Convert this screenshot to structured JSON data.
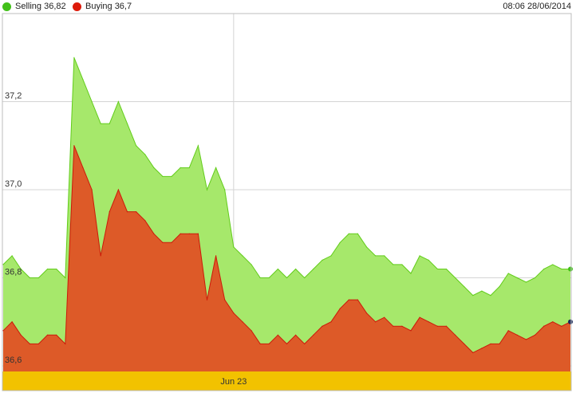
{
  "legend": {
    "selling_label": "Selling 36,82",
    "buying_label": "Buying 36,7",
    "timestamp": "08:06 28/06/2014"
  },
  "colors": {
    "selling_fill": "#a6e86b",
    "selling_line": "#62cc1a",
    "buying_fill": "#dd5a28",
    "buying_line": "#cc1a0a",
    "date_band": "#f2c200",
    "selling_dot": "#42c01a",
    "buying_dot": "#dd1a0a"
  },
  "chart_data": {
    "type": "area",
    "title": "",
    "xlabel": "",
    "ylabel": "",
    "ylim": [
      36.6,
      37.4
    ],
    "yticks": [
      "37,2",
      "37,0",
      "36,8",
      "36,6"
    ],
    "ytick_values": [
      37.2,
      37.0,
      36.8,
      36.6
    ],
    "x_category_label": "Jun 23",
    "x_category_index": 26,
    "grid": true,
    "legend": "top-left",
    "series": [
      {
        "name": "Selling 36,82",
        "values": [
          36.83,
          36.85,
          36.82,
          36.8,
          36.8,
          36.82,
          36.82,
          36.8,
          37.3,
          37.25,
          37.2,
          37.15,
          37.15,
          37.2,
          37.15,
          37.1,
          37.08,
          37.05,
          37.03,
          37.03,
          37.05,
          37.05,
          37.1,
          37.0,
          37.05,
          37.0,
          36.87,
          36.85,
          36.83,
          36.8,
          36.8,
          36.82,
          36.8,
          36.82,
          36.8,
          36.82,
          36.84,
          36.85,
          36.88,
          36.9,
          36.9,
          36.87,
          36.85,
          36.85,
          36.83,
          36.83,
          36.81,
          36.85,
          36.84,
          36.82,
          36.82,
          36.8,
          36.78,
          36.76,
          36.77,
          36.76,
          36.78,
          36.81,
          36.8,
          36.79,
          36.8,
          36.82,
          36.83,
          36.82,
          36.82
        ]
      },
      {
        "name": "Buying 36,7",
        "values": [
          36.68,
          36.7,
          36.67,
          36.65,
          36.65,
          36.67,
          36.67,
          36.65,
          37.1,
          37.05,
          37.0,
          36.85,
          36.95,
          37.0,
          36.95,
          36.95,
          36.93,
          36.9,
          36.88,
          36.88,
          36.9,
          36.9,
          36.9,
          36.75,
          36.85,
          36.75,
          36.72,
          36.7,
          36.68,
          36.65,
          36.65,
          36.67,
          36.65,
          36.67,
          36.65,
          36.67,
          36.69,
          36.7,
          36.73,
          36.75,
          36.75,
          36.72,
          36.7,
          36.71,
          36.69,
          36.69,
          36.68,
          36.71,
          36.7,
          36.69,
          36.69,
          36.67,
          36.65,
          36.63,
          36.64,
          36.65,
          36.65,
          36.68,
          36.67,
          36.66,
          36.67,
          36.69,
          36.7,
          36.69,
          36.7
        ]
      }
    ]
  }
}
